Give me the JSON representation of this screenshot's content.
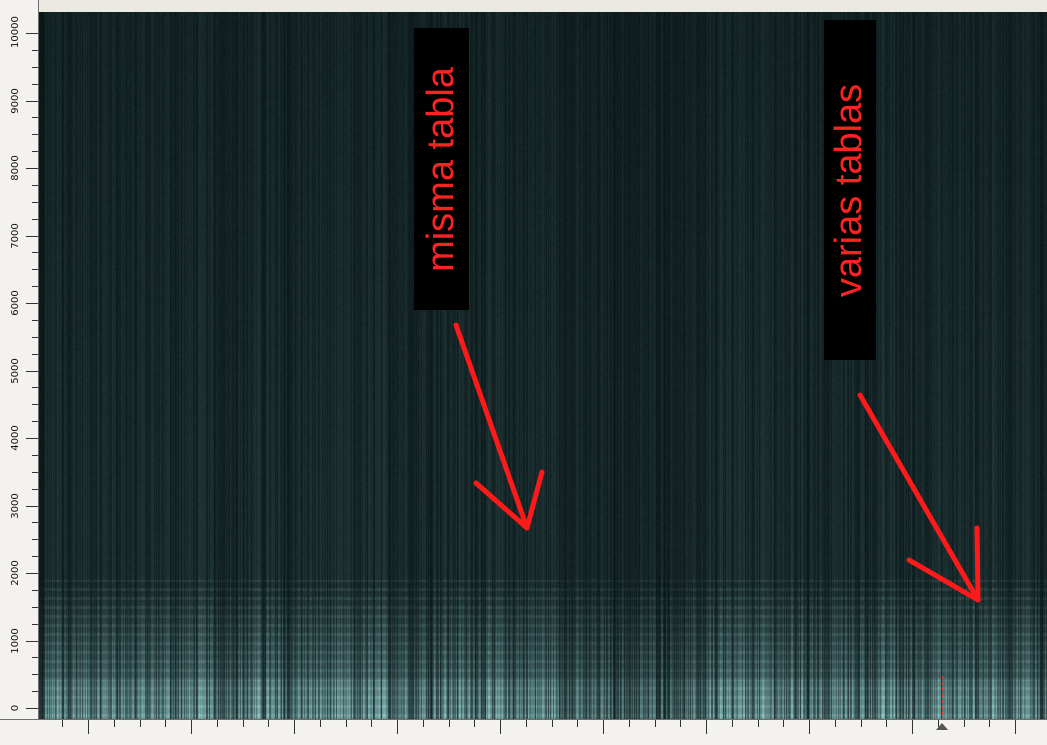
{
  "frequency_axis": {
    "labels": [
      "0",
      "1000",
      "2000",
      "3000",
      "4000",
      "5000",
      "6000",
      "7000",
      "8000",
      "9000",
      "10000"
    ]
  },
  "time_axis": {
    "note": ""
  },
  "annotations": {
    "left_label": "misma tabla",
    "right_label": "varias tablas"
  },
  "colors": {
    "annotation_text": "#ff2222",
    "annotation_box": "#000000",
    "arrow": "#ff1a1a",
    "spectrogram_dark": "#061214",
    "spectrogram_bright": "#9fd8d6"
  },
  "icons": {
    "playhead": "playhead-triangle-icon"
  }
}
